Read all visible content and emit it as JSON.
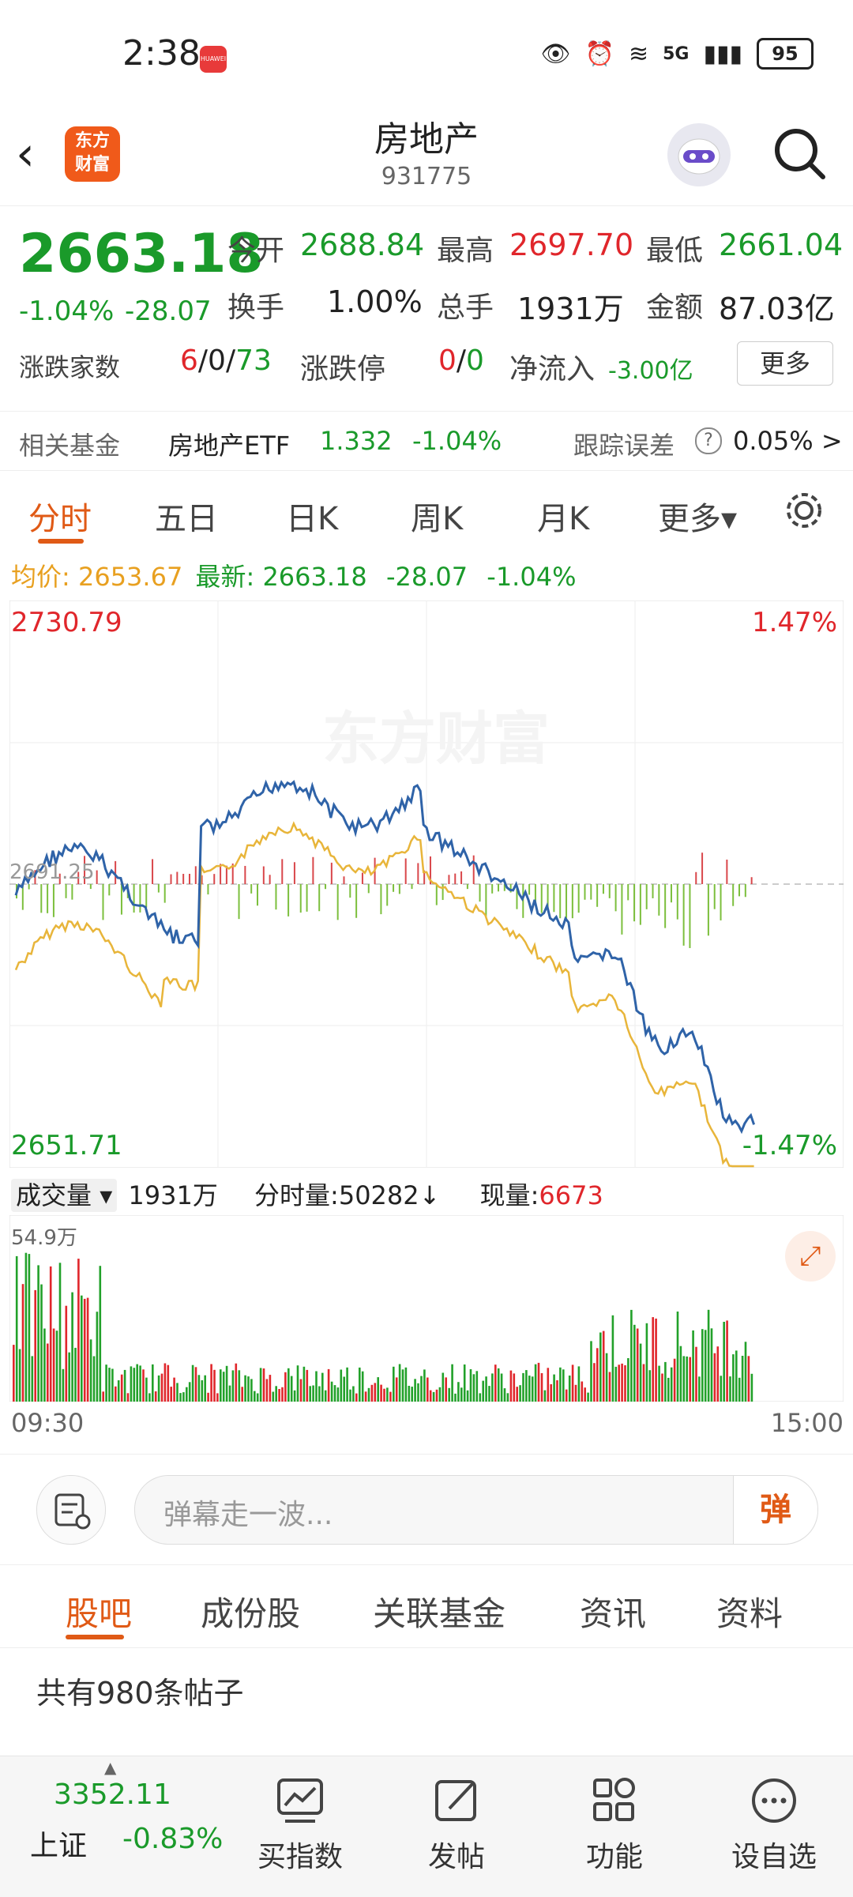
{
  "status": {
    "time": "2:38",
    "battery": "95",
    "network": "5G",
    "badge": "HUAWEI"
  },
  "header": {
    "title": "房地产",
    "code": "931775",
    "logo_text_1": "东方",
    "logo_text_2": "财富"
  },
  "quote": {
    "price": "2663.18",
    "change_pct": "-1.04%",
    "change": "-28.07",
    "open_label": "今开",
    "open": "2688.84",
    "high_label": "最高",
    "high": "2697.70",
    "low_label": "最低",
    "low": "2661.04",
    "turnover_label": "换手",
    "turnover": "1.00%",
    "volume_label": "总手",
    "volume": "1931万",
    "amount_label": "金额",
    "amount": "87.03亿",
    "updown_label": "涨跌家数",
    "up": "6",
    "flat": "0",
    "down": "73",
    "limit_label": "涨跌停",
    "limit_up": "0",
    "limit_down": "0",
    "inflow_label": "净流入",
    "inflow": "-3.00亿",
    "more_label": "更多",
    "sep": "/"
  },
  "fund": {
    "label": "相关基金",
    "name": "房地产ETF",
    "price": "1.332",
    "pct": "-1.04%",
    "track_label": "跟踪误差",
    "track_value": "0.05% >",
    "help": "?"
  },
  "tabs": [
    "分时",
    "五日",
    "日K",
    "周K",
    "月K",
    "更多▾"
  ],
  "avg": {
    "avg_label": "均价:",
    "avg": "2653.67",
    "latest_label": "最新:",
    "latest": "2663.18",
    "chg": "-28.07",
    "pct": "-1.04%"
  },
  "chart": {
    "top_price": "2730.79",
    "top_pct": "1.47%",
    "bottom_price": "2651.71",
    "bottom_pct": "-1.47%",
    "mid_label": "2691.25",
    "watermark": "东方财富"
  },
  "volume": {
    "label": "成交量",
    "total": "1931万",
    "tick_label": "分时量:50282↓",
    "now_label": "现量:",
    "now": "6673",
    "max": "54.9万"
  },
  "time_axis": {
    "start": "09:30",
    "end": "15:00"
  },
  "danmu": {
    "placeholder": "弹幕走一波...",
    "btn": "弹"
  },
  "bottom_tabs": [
    "股吧",
    "成份股",
    "关联基金",
    "资讯",
    "资料"
  ],
  "posts": "共有980条帖子",
  "footer": {
    "index_value": "3352.11",
    "index_name": "上证",
    "index_pct": "-0.83%",
    "items": [
      "买指数",
      "发帖",
      "功能",
      "设自选"
    ]
  },
  "colors": {
    "up": "#e0262b",
    "down": "#1a9a2a",
    "accent": "#e05a16",
    "price_line": "#2f63a8",
    "avg_line": "#e8b53a"
  }
}
